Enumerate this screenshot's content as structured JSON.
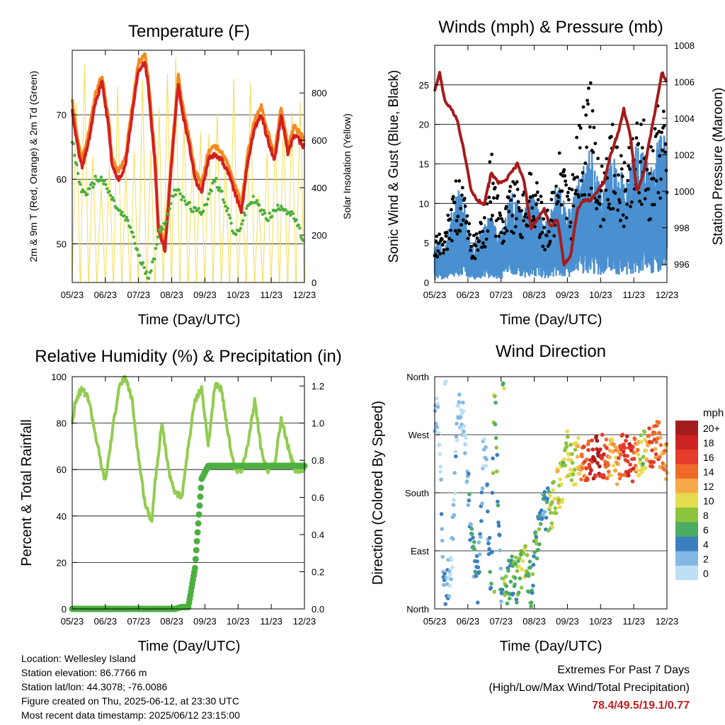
{
  "x_tick_labels": [
    "05/23",
    "06/23",
    "07/23",
    "08/23",
    "09/23",
    "10/23",
    "11/23",
    "12/23"
  ],
  "info": {
    "location": "Location: Wellesley Island",
    "elevation": "Station elevation: 86.7766 m",
    "latlon": "Station lat/lon: 44.3078; -76.0086",
    "created": "Figure created on Thu, 2025-06-12, at 23:30 UTC",
    "recent": "Most recent data timestamp: 2025/06/12 23:15:00"
  },
  "extremes": {
    "title": "Extremes For Past 7 Days",
    "subtitle": "(High/Low/Max Wind/Total Precipitation)",
    "values": "78.4/49.5/19.1/0.77"
  },
  "colors": {
    "temp_2m": "#d42020",
    "temp_9m": "#f28a20",
    "dewpoint": "#4caf3c",
    "solar": "#f5dc50",
    "wind": "#4a90d0",
    "gust": "#000000",
    "pressure": "#a51c1c",
    "rh": "#92cc50",
    "precip": "#4cb040"
  },
  "chart_data": [
    {
      "type": "line",
      "title": "Temperature (F)",
      "xlabel": "Time (Day/UTC)",
      "ylabel": "2m & 9m T (Red, Orange) & 2m Td (Green)",
      "y2label": "Solar Insolation (Yellow)",
      "ylim": [
        44,
        80
      ],
      "yticks": [
        50,
        60,
        70
      ],
      "y2lim": [
        0,
        980
      ],
      "y2ticks": [
        0,
        200,
        400,
        600,
        800
      ],
      "x": [
        0,
        0.1,
        0.2,
        0.3,
        0.5,
        0.7,
        0.9,
        1.1,
        1.2,
        1.4,
        1.6,
        1.8,
        2.0,
        2.2,
        2.3,
        2.5,
        2.6,
        2.8,
        3.0,
        3.2,
        3.3,
        3.5,
        3.7,
        3.9,
        4.1,
        4.3,
        4.5,
        4.7,
        4.9,
        5.1,
        5.3,
        5.5,
        5.7,
        5.9,
        6.1,
        6.3,
        6.5,
        6.7,
        7.0
      ],
      "series": [
        {
          "name": "2m T",
          "values": [
            71,
            67,
            64,
            62,
            66,
            72,
            75,
            68,
            62,
            60,
            62,
            70,
            77,
            78,
            74,
            62,
            52,
            49,
            63,
            75,
            71,
            66,
            60,
            58,
            63,
            64,
            63,
            61,
            58,
            55,
            63,
            68,
            70,
            66,
            63,
            70,
            64,
            67,
            65
          ]
        },
        {
          "name": "2m Td",
          "values": [
            66,
            63,
            60,
            58,
            58,
            60,
            60,
            58,
            57,
            55,
            54,
            52,
            48,
            46,
            45,
            48,
            52,
            53,
            57,
            59,
            57,
            56,
            55,
            55,
            57,
            60,
            58,
            55,
            51,
            53,
            56,
            57,
            55,
            54,
            55,
            56,
            55,
            54,
            50
          ]
        }
      ],
      "solar_peak": 980
    },
    {
      "type": "scatter",
      "title": "Winds (mph) & Pressure (mb)",
      "xlabel": "Time (Day/UTC)",
      "ylabel": "Sonic Wind & Gust (Blue, Black)",
      "y2label": "Station Pressure (Maroon)",
      "ylim": [
        0,
        30
      ],
      "yticks": [
        0,
        5,
        10,
        15,
        20,
        25
      ],
      "y2lim": [
        995,
        1008
      ],
      "y2ticks": [
        996,
        998,
        1000,
        1002,
        1004,
        1006,
        1008
      ],
      "x": [
        0,
        0.15,
        0.3,
        0.5,
        0.7,
        0.9,
        1.1,
        1.3,
        1.5,
        1.7,
        1.9,
        2.1,
        2.3,
        2.5,
        2.7,
        2.9,
        3.1,
        3.3,
        3.5,
        3.7,
        3.9,
        4.1,
        4.3,
        4.5,
        4.7,
        4.9,
        5.1,
        5.3,
        5.5,
        5.7,
        5.9,
        6.1,
        6.3,
        6.5,
        6.7,
        6.85,
        7.0
      ],
      "series": [
        {
          "name": "pressure",
          "values": [
            1005.5,
            1006.5,
            1005,
            1004.5,
            1003.8,
            1002,
            1000,
            999.5,
            999.3,
            1001,
            1000.5,
            1000.5,
            1001,
            1001.5,
            1000.5,
            998,
            998.5,
            999,
            998,
            998.5,
            996,
            996.5,
            999,
            999.5,
            999.5,
            1000,
            1000.5,
            1002,
            1003,
            1004.5,
            1003,
            1000,
            1001,
            1003,
            1005,
            1006.5,
            1006
          ]
        },
        {
          "name": "wind",
          "values": [
            3,
            4,
            3,
            6,
            8,
            7,
            3,
            4,
            5,
            6,
            4,
            6,
            8,
            7,
            6,
            8,
            7,
            5,
            6,
            9,
            7,
            6,
            9,
            10,
            12,
            9,
            8,
            11,
            10,
            9,
            10,
            12,
            11,
            10,
            12,
            13,
            12
          ]
        },
        {
          "name": "gust",
          "values": [
            5,
            6,
            5,
            10,
            12,
            10,
            5,
            6,
            8,
            15,
            10,
            9,
            12,
            11,
            10,
            13,
            11,
            8,
            9,
            14,
            15,
            10,
            18,
            20,
            22,
            15,
            12,
            18,
            16,
            14,
            16,
            20,
            18,
            15,
            20,
            22,
            18
          ]
        }
      ]
    },
    {
      "type": "line",
      "title": "Relative Humidity (%) & Precipitation (in)",
      "xlabel": "Time (Day/UTC)",
      "ylabel": "Percent & Total Rainfall",
      "ylim": [
        0,
        100
      ],
      "yticks": [
        0,
        20,
        40,
        60,
        80,
        100
      ],
      "y2lim": [
        0,
        1.25
      ],
      "y2ticks": [
        0.0,
        0.2,
        0.4,
        0.6,
        0.8,
        1.0,
        1.2
      ],
      "x": [
        0,
        0.1,
        0.3,
        0.5,
        0.7,
        0.9,
        1.0,
        1.2,
        1.4,
        1.6,
        1.8,
        2.0,
        2.2,
        2.4,
        2.5,
        2.7,
        2.9,
        3.1,
        3.3,
        3.5,
        3.7,
        3.9,
        4.1,
        4.3,
        4.5,
        4.7,
        4.9,
        5.1,
        5.3,
        5.5,
        5.7,
        5.9,
        6.1,
        6.3,
        6.5,
        6.7,
        7.0
      ],
      "series": [
        {
          "name": "rh",
          "values": [
            80,
            90,
            95,
            90,
            75,
            60,
            55,
            75,
            95,
            100,
            90,
            65,
            45,
            38,
            55,
            80,
            60,
            50,
            48,
            70,
            90,
            95,
            70,
            96,
            95,
            75,
            60,
            60,
            70,
            90,
            68,
            60,
            62,
            82,
            70,
            60,
            60
          ]
        },
        {
          "name": "precip",
          "values": [
            0,
            0,
            0,
            0,
            0,
            0,
            0,
            0,
            0,
            0,
            0,
            0,
            0,
            0,
            0,
            0,
            0,
            0,
            0.01,
            0.01,
            0.22,
            0.7,
            0.77,
            0.77,
            0.77,
            0.77,
            0.77,
            0.77,
            0.77,
            0.77,
            0.77,
            0.77,
            0.77,
            0.77,
            0.77,
            0.77,
            0.77
          ]
        }
      ]
    },
    {
      "type": "scatter",
      "title": "Wind Direction",
      "xlabel": "Time (Day/UTC)",
      "ylabel": "Direction (Colored By Speed)",
      "ylim": [
        0,
        360
      ],
      "y_tick_labels": [
        "North",
        "East",
        "South",
        "West",
        "North"
      ],
      "colorbar": {
        "title": "mph",
        "labels": [
          "20+",
          "18",
          "16",
          "14",
          "12",
          "10",
          "8",
          "6",
          "4",
          "2",
          "0"
        ],
        "colors": [
          "#a51c1c",
          "#cc2424",
          "#e53b2a",
          "#f06a2a",
          "#f8a848",
          "#e6dc50",
          "#8cc43e",
          "#4cac64",
          "#3b7fc0",
          "#82b8e4",
          "#bee0f4"
        ]
      },
      "x": [
        0.1,
        0.3,
        0.5,
        0.7,
        0.9,
        1.1,
        1.3,
        1.5,
        1.7,
        1.8,
        2.0,
        2.1,
        2.3,
        2.5,
        2.7,
        2.9,
        3.1,
        3.3,
        3.5,
        3.7,
        3.9,
        4.0,
        4.1,
        4.3,
        4.5,
        4.7,
        4.9,
        5.1,
        5.3,
        5.5,
        5.7,
        5.9,
        6.1,
        6.3,
        6.5,
        6.7,
        6.9
      ],
      "series": [
        {
          "name": "direction",
          "values": [
            300,
            20,
            60,
            330,
            280,
            110,
            40,
            270,
            30,
            360,
            20,
            10,
            60,
            40,
            80,
            35,
            120,
            160,
            150,
            185,
            200,
            245,
            220,
            230,
            235,
            230,
            240,
            235,
            230,
            225,
            240,
            230,
            235,
            250,
            250,
            265,
            235
          ]
        },
        {
          "name": "speed",
          "values": [
            1,
            3,
            2,
            1,
            1,
            4,
            4,
            1,
            5,
            8,
            3,
            8,
            6,
            7,
            9,
            5,
            6,
            4,
            8,
            10,
            8,
            9,
            9,
            10,
            14,
            16,
            20,
            17,
            10,
            13,
            16,
            18,
            12,
            8,
            16,
            14,
            12
          ]
        }
      ]
    }
  ]
}
